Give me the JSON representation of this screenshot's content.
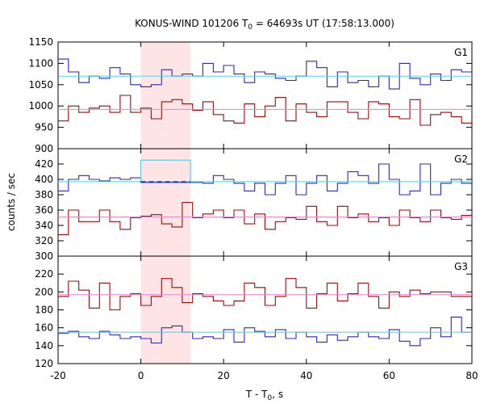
{
  "title": {
    "prefix": "KONUS-WIND 101206 T",
    "sub": "0",
    "suffix": " = 64693s UT (17:58:13.000)"
  },
  "ylabel": "counts / sec",
  "xlabel": {
    "prefix": "T - T",
    "sub": "0",
    "suffix": ", s"
  },
  "colors": {
    "count_curve": "#9b0a0a",
    "bg_curve": "#2a2ab4",
    "count_level": "#e88fd0",
    "bg_level": "#5ed0e8",
    "interval": "#ffe4e6"
  },
  "chart_data": {
    "type": "line",
    "x_ticks": [
      -20,
      0,
      20,
      40,
      60,
      80
    ],
    "xlim": [
      -20,
      80
    ],
    "highlight_interval": [
      0,
      12
    ],
    "panels": [
      {
        "label": "G1",
        "ylim": [
          900,
          1150
        ],
        "y_ticks": [
          900,
          950,
          1000,
          1050,
          1100,
          1150
        ],
        "bin_edges": [
          -20,
          -17.5,
          -15,
          -12.5,
          -10,
          -7.5,
          -5,
          -2.5,
          0,
          2.5,
          5,
          7.5,
          10,
          12.5,
          15,
          17.5,
          20,
          22.5,
          25,
          27.5,
          30,
          32.5,
          35,
          37.5,
          40,
          42.5,
          45,
          47.5,
          50,
          52.5,
          55,
          57.5,
          60,
          62.5,
          65,
          67.5,
          70,
          72.5,
          75,
          77.5,
          80
        ],
        "series": [
          {
            "name": "G1 blue",
            "color": "#2a2ab4",
            "values": [
              1110,
              1080,
              1055,
              1070,
              1065,
              1090,
              1075,
              1050,
              1045,
              1050,
              1085,
              1070,
              1075,
              1070,
              1100,
              1080,
              1095,
              1075,
              1055,
              1080,
              1075,
              1065,
              1060,
              1070,
              1105,
              1090,
              1045,
              1080,
              1055,
              1060,
              1045,
              1070,
              1040,
              1100,
              1065,
              1050,
              1075,
              1060,
              1085,
              1080
            ]
          },
          {
            "name": "G1 level",
            "color": "#5ed0e8",
            "level": 1070
          },
          {
            "name": "G1 red",
            "color": "#9b0a0a",
            "values": [
              965,
              1000,
              985,
              995,
              1000,
              985,
              1025,
              985,
              995,
              970,
              1010,
              1015,
              1005,
              990,
              1010,
              980,
              965,
              960,
              1005,
              975,
              1000,
              1020,
              965,
              1005,
              985,
              975,
              1010,
              1010,
              985,
              970,
              1010,
              1005,
              975,
              970,
              1015,
              955,
              980,
              985,
              975,
              960
            ]
          },
          {
            "name": "G1 red level",
            "color": "#e88fd0",
            "level": 992
          }
        ]
      },
      {
        "label": "G2",
        "ylim": [
          300,
          440
        ],
        "y_ticks": [
          300,
          320,
          340,
          360,
          380,
          400,
          420
        ],
        "bin_edges": [
          -20,
          -17.5,
          -15,
          -12.5,
          -10,
          -7.5,
          -5,
          -2.5,
          0,
          2.5,
          5,
          7.5,
          10,
          12.5,
          15,
          17.5,
          20,
          22.5,
          25,
          27.5,
          30,
          32.5,
          35,
          37.5,
          40,
          42.5,
          45,
          47.5,
          50,
          52.5,
          55,
          57.5,
          60,
          62.5,
          65,
          67.5,
          70,
          72.5,
          75,
          77.5,
          80
        ],
        "series": [
          {
            "name": "G2 blue",
            "color": "#2a2ab4",
            "values": [
              385,
              400,
              405,
              400,
              398,
              402,
              400,
              402,
              396,
              396,
              396,
              396,
              396,
              396,
              395,
              405,
              400,
              395,
              385,
              395,
              380,
              395,
              405,
              380,
              395,
              405,
              385,
              395,
              410,
              405,
              395,
              420,
              400,
              380,
              385,
              420,
              380,
              395,
              400,
              395
            ]
          },
          {
            "name": "G2 level",
            "color": "#5ed0e8",
            "level": 397
          },
          {
            "name": "G2 interval",
            "color": "#5ed0e8",
            "level": 425
          },
          {
            "name": "G2 red",
            "color": "#9b0a0a",
            "values": [
              328,
              360,
              345,
              345,
              360,
              345,
              335,
              350,
              352,
              354,
              342,
              338,
              370,
              350,
              355,
              360,
              350,
              360,
              342,
              355,
              335,
              345,
              350,
              348,
              365,
              345,
              340,
              365,
              350,
              355,
              345,
              350,
              340,
              360,
              350,
              345,
              360,
              350,
              348,
              353
            ]
          },
          {
            "name": "G2 red level",
            "color": "#e88fd0",
            "level": 351
          }
        ]
      },
      {
        "label": "G3",
        "ylim": [
          120,
          240
        ],
        "y_ticks": [
          120,
          140,
          160,
          180,
          200,
          220
        ],
        "bin_edges": [
          -20,
          -17.5,
          -15,
          -12.5,
          -10,
          -7.5,
          -5,
          -2.5,
          0,
          2.5,
          5,
          7.5,
          10,
          12.5,
          15,
          17.5,
          20,
          22.5,
          25,
          27.5,
          30,
          32.5,
          35,
          37.5,
          40,
          42.5,
          45,
          47.5,
          50,
          52.5,
          55,
          57.5,
          60,
          62.5,
          65,
          67.5,
          70,
          72.5,
          75,
          77.5,
          80
        ],
        "series": [
          {
            "name": "G3 red",
            "color": "#9b0a0a",
            "values": [
              195,
              212,
              202,
              182,
              210,
              180,
              195,
              198,
              185,
              195,
              215,
              205,
              188,
              198,
              195,
              190,
              185,
              190,
              210,
              205,
              185,
              195,
              215,
              205,
              182,
              198,
              210,
              190,
              198,
              210,
              195,
              182,
              200,
              195,
              202,
              198,
              200,
              200,
              195,
              195
            ]
          },
          {
            "name": "G3 red level",
            "color": "#e88fd0",
            "level": 197
          },
          {
            "name": "G3 blue",
            "color": "#2a2ab4",
            "values": [
              154,
              156,
              150,
              148,
              156,
              152,
              148,
              150,
              148,
              143,
              160,
              162,
              155,
              148,
              150,
              148,
              158,
              144,
              160,
              156,
              150,
              158,
              148,
              155,
              150,
              144,
              152,
              146,
              150,
              155,
              150,
              148,
              158,
              145,
              140,
              148,
              160,
              150,
              172,
              155
            ]
          },
          {
            "name": "G3 level",
            "color": "#5ed0e8",
            "level": 155
          }
        ]
      }
    ]
  }
}
